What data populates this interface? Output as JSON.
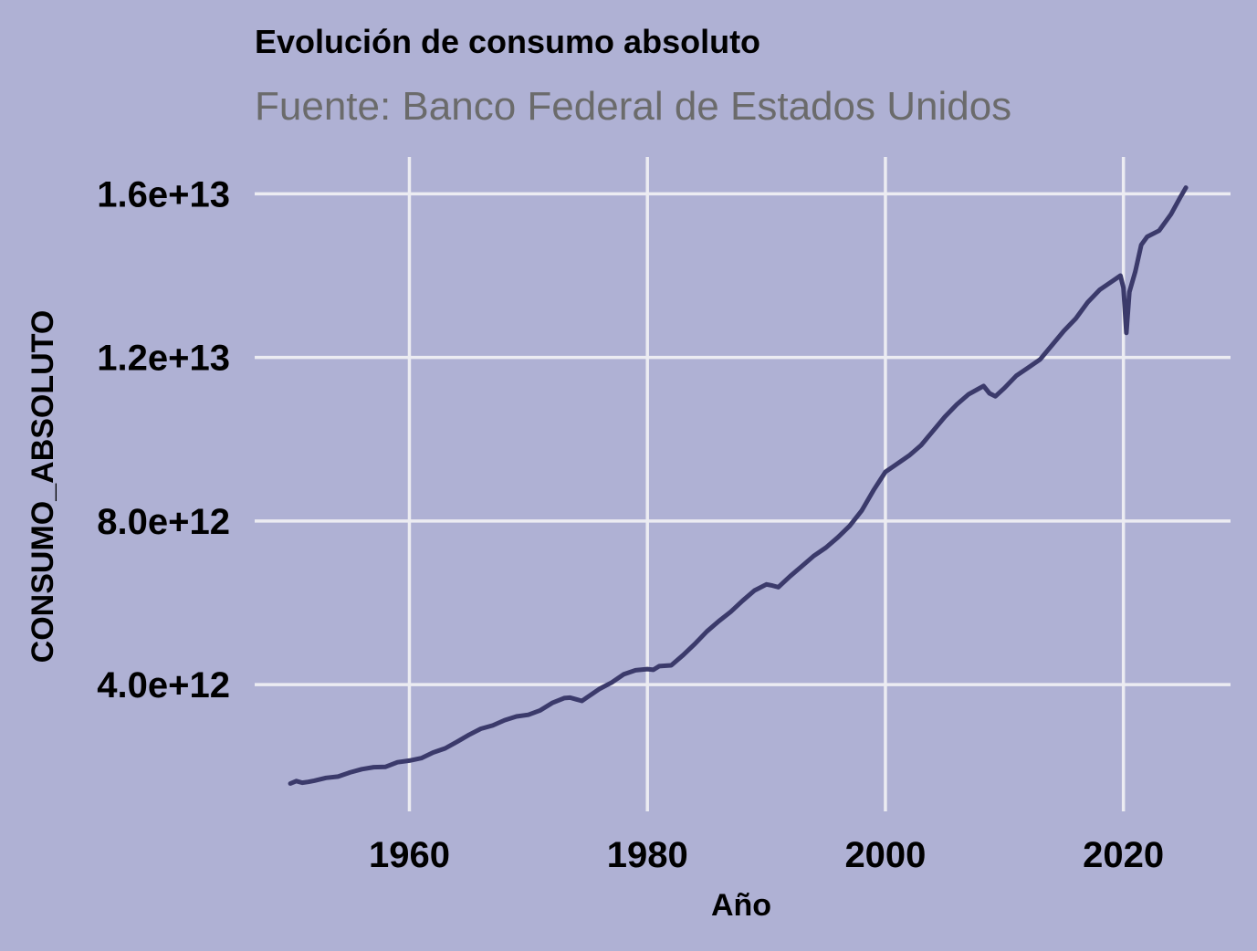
{
  "colors": {
    "background": "#afb1d4",
    "grid": "#ececf2",
    "line": "#3b3a6b",
    "subtitle": "#6b6b6b"
  },
  "chart_data": {
    "type": "line",
    "title": "Evolución de consumo absoluto",
    "subtitle": "Fuente: Banco Federal de Estados Unidos",
    "xlabel": "Año",
    "ylabel": "CONSUMO_ABSOLUTO",
    "xlim": [
      1947,
      2029
    ],
    "ylim": [
      900000000000.0,
      16900000000000.0
    ],
    "x_ticks": [
      1960,
      1980,
      2000,
      2020
    ],
    "x_tick_labels": [
      "1960",
      "1980",
      "2000",
      "2020"
    ],
    "y_ticks": [
      4000000000000.0,
      8000000000000.0,
      12000000000000.0,
      16000000000000.0
    ],
    "y_tick_labels": [
      "4.0e+12",
      "8.0e+12",
      "1.2e+13",
      "1.6e+13"
    ],
    "grid": true,
    "legend": "none",
    "series": [
      {
        "x": [
          1950.0,
          1950.5,
          1951.0,
          1951.5,
          1952.0,
          1953.0,
          1954.0,
          1955.0,
          1956.0,
          1957.0,
          1958.0,
          1959.0,
          1960.0,
          1961.0,
          1962.0,
          1963.0,
          1964.0,
          1965.0,
          1966.0,
          1967.0,
          1968.0,
          1969.0,
          1970.0,
          1971.0,
          1972.0,
          1973.0,
          1973.5,
          1974.0,
          1974.5,
          1975.0,
          1976.0,
          1977.0,
          1978.0,
          1979.0,
          1980.0,
          1980.5,
          1981.0,
          1982.0,
          1983.0,
          1984.0,
          1985.0,
          1986.0,
          1987.0,
          1988.0,
          1989.0,
          1990.0,
          1990.5,
          1991.0,
          1992.0,
          1993.0,
          1994.0,
          1995.0,
          1996.0,
          1997.0,
          1998.0,
          1999.0,
          2000.0,
          2001.0,
          2002.0,
          2003.0,
          2004.0,
          2005.0,
          2006.0,
          2007.0,
          2007.75,
          2008.25,
          2008.75,
          2009.25,
          2010.0,
          2011.0,
          2012.0,
          2013.0,
          2014.0,
          2015.0,
          2016.0,
          2017.0,
          2018.0,
          2019.0,
          2019.75,
          2020.0,
          2020.25,
          2020.5,
          2021.0,
          2021.5,
          2022.0,
          2023.0,
          2024.0,
          2024.75,
          2025.25
        ],
        "values": [
          1580000000000.0,
          1640000000000.0,
          1600000000000.0,
          1620000000000.0,
          1650000000000.0,
          1720000000000.0,
          1750000000000.0,
          1850000000000.0,
          1930000000000.0,
          1980000000000.0,
          1990000000000.0,
          2100000000000.0,
          2140000000000.0,
          2200000000000.0,
          2340000000000.0,
          2440000000000.0,
          2600000000000.0,
          2770000000000.0,
          2920000000000.0,
          3000000000000.0,
          3130000000000.0,
          3220000000000.0,
          3260000000000.0,
          3370000000000.0,
          3550000000000.0,
          3670000000000.0,
          3680000000000.0,
          3640000000000.0,
          3600000000000.0,
          3700000000000.0,
          3900000000000.0,
          4050000000000.0,
          4250000000000.0,
          4350000000000.0,
          4380000000000.0,
          4360000000000.0,
          4450000000000.0,
          4470000000000.0,
          4720000000000.0,
          5000000000000.0,
          5300000000000.0,
          5550000000000.0,
          5780000000000.0,
          6050000000000.0,
          6300000000000.0,
          6450000000000.0,
          6420000000000.0,
          6380000000000.0,
          6650000000000.0,
          6900000000000.0,
          7150000000000.0,
          7350000000000.0,
          7600000000000.0,
          7880000000000.0,
          8250000000000.0,
          8750000000000.0,
          9200000000000.0,
          9400000000000.0,
          9600000000000.0,
          9850000000000.0,
          10200000000000.0,
          10550000000000.0,
          10850000000000.0,
          11100000000000.0,
          11220000000000.0,
          11300000000000.0,
          11120000000000.0,
          11050000000000.0,
          11250000000000.0,
          11550000000000.0,
          11750000000000.0,
          11950000000000.0,
          12300000000000.0,
          12650000000000.0,
          12950000000000.0,
          13350000000000.0,
          13650000000000.0,
          13850000000000.0,
          14000000000000.0,
          13700000000000.0,
          12600000000000.0,
          13600000000000.0,
          14100000000000.0,
          14750000000000.0,
          14950000000000.0,
          15100000000000.0,
          15500000000000.0,
          15900000000000.0,
          16150000000000.0
        ]
      }
    ]
  }
}
